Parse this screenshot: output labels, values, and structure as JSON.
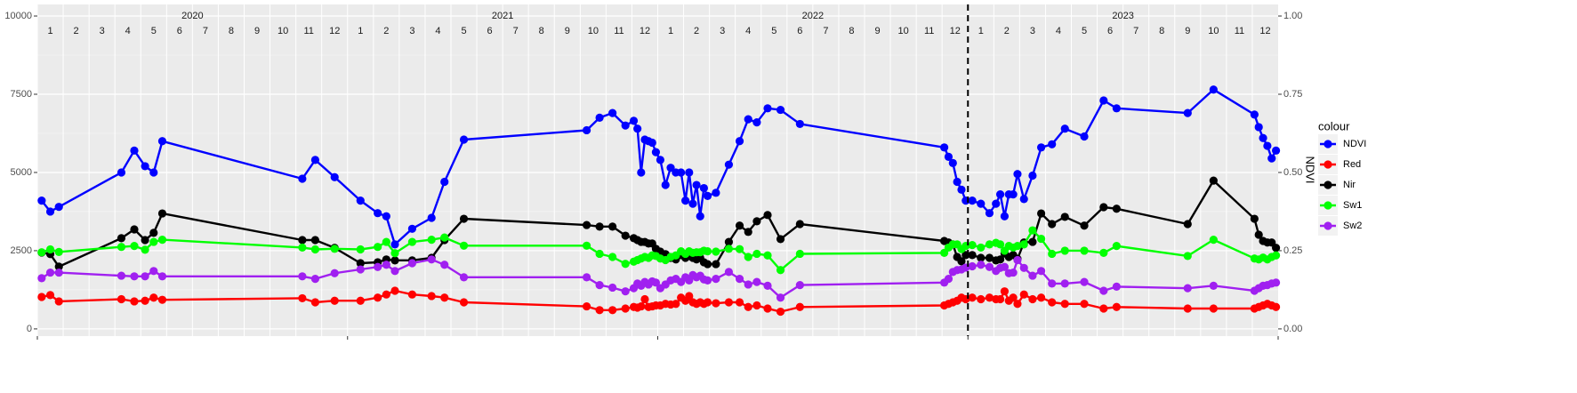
{
  "chart_data": {
    "type": "line",
    "facets": [
      {
        "label": "2020",
        "months": [
          1,
          2,
          3,
          4,
          5,
          6,
          7,
          8,
          9,
          10,
          11,
          12
        ]
      },
      {
        "label": "2021",
        "months": [
          1,
          2,
          3,
          4,
          5,
          6,
          7,
          8,
          9,
          10,
          11,
          12
        ]
      },
      {
        "label": "2022",
        "months": [
          1,
          2,
          3,
          4,
          5,
          6,
          7,
          8,
          9,
          10,
          11,
          12
        ]
      },
      {
        "label": "2023",
        "months": [
          1,
          2,
          3,
          4,
          5,
          6,
          7,
          8,
          9,
          10,
          11,
          12
        ]
      }
    ],
    "x": [
      "2020-01",
      "2020-01",
      "2020-01",
      "2020-04",
      "2020-04",
      "2020-05",
      "2020-05",
      "2020-05",
      "2020-11",
      "2020-11",
      "2020-12",
      "2021-01",
      "2021-02",
      "2021-02",
      "2021-02",
      "2021-03",
      "2021-04",
      "2021-04",
      "2021-05",
      "2021-10",
      "2021-10",
      "2021-11",
      "2021-11",
      "2021-12",
      "2021-12",
      "2021-12",
      "2021-12",
      "2021-12",
      "2021-12",
      "2021-12",
      "2022-01",
      "2022-01",
      "2022-01",
      "2022-01",
      "2022-01",
      "2022-02",
      "2022-02",
      "2022-02",
      "2022-02",
      "2022-02",
      "2022-02",
      "2022-02",
      "2022-03",
      "2022-03",
      "2022-04",
      "2022-04",
      "2022-04",
      "2022-05",
      "2022-05",
      "2022-06",
      "2022-12",
      "2022-12",
      "2022-12",
      "2022-12",
      "2022-12",
      "2022-12",
      "2023-01",
      "2023-01",
      "2023-01",
      "2023-02",
      "2023-02",
      "2023-02",
      "2023-02",
      "2023-02",
      "2023-02",
      "2023-03",
      "2023-03",
      "2023-03",
      "2023-04",
      "2023-04",
      "2023-05",
      "2023-06",
      "2023-06",
      "2023-09",
      "2023-10",
      "2023-12",
      "2023-12",
      "2023-12",
      "2023-12",
      "2023-12",
      "2023-12"
    ],
    "xlim": [
      "2020-01",
      "2023-12"
    ],
    "vline": "2023-01",
    "series": [
      {
        "name": "NDVI",
        "color": "#0000FF",
        "axis": "y2",
        "values": [
          0.41,
          0.375,
          0.39,
          0.5,
          0.57,
          0.52,
          0.5,
          0.6,
          0.48,
          0.54,
          0.485,
          0.41,
          0.37,
          0.36,
          0.27,
          0.32,
          0.355,
          0.47,
          0.605,
          0.635,
          0.675,
          0.69,
          0.65,
          0.665,
          0.64,
          0.5,
          0.605,
          0.6,
          0.595,
          0.565,
          0.54,
          0.46,
          0.515,
          0.5,
          0.5,
          0.41,
          0.5,
          0.4,
          0.46,
          0.36,
          0.45,
          0.425,
          0.435,
          0.525,
          0.6,
          0.67,
          0.66,
          0.705,
          0.7,
          0.655,
          0.58,
          0.55,
          0.53,
          0.47,
          0.445,
          0.41,
          0.41,
          0.4,
          0.37,
          0.4,
          0.43,
          0.36,
          0.43,
          0.43,
          0.495,
          0.415,
          0.49,
          0.58,
          0.59,
          0.64,
          0.615,
          0.73,
          0.705,
          0.69,
          0.765,
          0.685,
          0.645,
          0.61,
          0.585,
          0.545,
          0.57
        ]
      },
      {
        "name": "Red",
        "color": "#FF0000",
        "values": [
          1020,
          1080,
          880,
          950,
          880,
          900,
          1000,
          930,
          980,
          850,
          900,
          900,
          1000,
          1100,
          1220,
          1100,
          1050,
          1000,
          850,
          720,
          600,
          600,
          650,
          700,
          680,
          720,
          950,
          700,
          720,
          750,
          750,
          800,
          780,
          800,
          1000,
          900,
          1050,
          850,
          800,
          850,
          800,
          850,
          820,
          850,
          850,
          700,
          750,
          650,
          550,
          700,
          750,
          800,
          850,
          900,
          1000,
          950,
          1000,
          950,
          1000,
          950,
          950,
          1200,
          900,
          1000,
          800,
          1100,
          950,
          1000,
          850,
          800,
          800,
          650,
          700,
          650,
          650,
          650,
          700,
          750,
          800,
          750,
          700
        ]
      },
      {
        "name": "Nir",
        "color": "#000000",
        "values": [
          2440,
          2390,
          1990,
          2900,
          3180,
          2840,
          3070,
          3690,
          2840,
          2840,
          2590,
          2100,
          2130,
          2220,
          2190,
          2190,
          2270,
          2840,
          3520,
          3320,
          3270,
          3270,
          2980,
          2900,
          2840,
          2780,
          2780,
          2730,
          2730,
          2560,
          2470,
          2390,
          2270,
          2220,
          2360,
          2270,
          2330,
          2270,
          2220,
          2270,
          2130,
          2070,
          2070,
          2780,
          3300,
          3100,
          3440,
          3640,
          2870,
          3350,
          2810,
          2760,
          2700,
          2300,
          2160,
          2360,
          2360,
          2270,
          2270,
          2190,
          2220,
          2410,
          2300,
          2360,
          2240,
          2760,
          2780,
          3690,
          3350,
          3580,
          3300,
          3890,
          3840,
          3350,
          4740,
          3520,
          3010,
          2810,
          2760,
          2760,
          2590
        ]
      },
      {
        "name": "Sw1",
        "color": "#00FF00",
        "values": [
          2450,
          2540,
          2460,
          2620,
          2650,
          2530,
          2780,
          2850,
          2600,
          2540,
          2560,
          2540,
          2620,
          2780,
          2420,
          2780,
          2850,
          2920,
          2660,
          2660,
          2400,
          2300,
          2080,
          2150,
          2200,
          2250,
          2300,
          2270,
          2350,
          2330,
          2250,
          2200,
          2300,
          2350,
          2480,
          2400,
          2480,
          2430,
          2450,
          2450,
          2500,
          2480,
          2470,
          2560,
          2550,
          2300,
          2400,
          2350,
          1880,
          2400,
          2430,
          2600,
          2700,
          2700,
          2550,
          2650,
          2680,
          2600,
          2700,
          2750,
          2700,
          2500,
          2650,
          2600,
          2650,
          2700,
          3150,
          2880,
          2400,
          2500,
          2500,
          2430,
          2650,
          2330,
          2850,
          2250,
          2220,
          2280,
          2220,
          2300,
          2350
        ]
      },
      {
        "name": "Sw2",
        "color": "#A020F0",
        "values": [
          1620,
          1800,
          1800,
          1700,
          1680,
          1680,
          1850,
          1680,
          1680,
          1600,
          1780,
          1900,
          1980,
          2050,
          1850,
          2100,
          2220,
          2050,
          1650,
          1650,
          1400,
          1320,
          1200,
          1300,
          1450,
          1380,
          1500,
          1420,
          1520,
          1480,
          1300,
          1420,
          1550,
          1600,
          1500,
          1650,
          1550,
          1720,
          1650,
          1700,
          1580,
          1550,
          1600,
          1820,
          1600,
          1420,
          1500,
          1380,
          1000,
          1400,
          1480,
          1600,
          1820,
          1880,
          1900,
          1960,
          2000,
          2050,
          1980,
          1850,
          1950,
          1980,
          1780,
          1800,
          2200,
          1950,
          1700,
          1850,
          1450,
          1450,
          1500,
          1220,
          1350,
          1300,
          1380,
          1220,
          1300,
          1380,
          1400,
          1450,
          1480
        ]
      }
    ],
    "ylim": [
      -230,
      10370
    ],
    "yticks": [
      0,
      2500,
      5000,
      7500,
      10000
    ],
    "y2lim": [
      -0.023,
      1.037
    ],
    "y2ticks": [
      {
        "value": 0,
        "label": "0.00"
      },
      {
        "value": 0.25,
        "label": "0.25"
      },
      {
        "value": 0.5,
        "label": "0.50"
      },
      {
        "value": 0.75,
        "label": "0.75"
      },
      {
        "value": 1,
        "label": "1.00"
      }
    ],
    "y2label": "NDVI",
    "legend_title": "colour",
    "legend": "right",
    "grid": true
  }
}
